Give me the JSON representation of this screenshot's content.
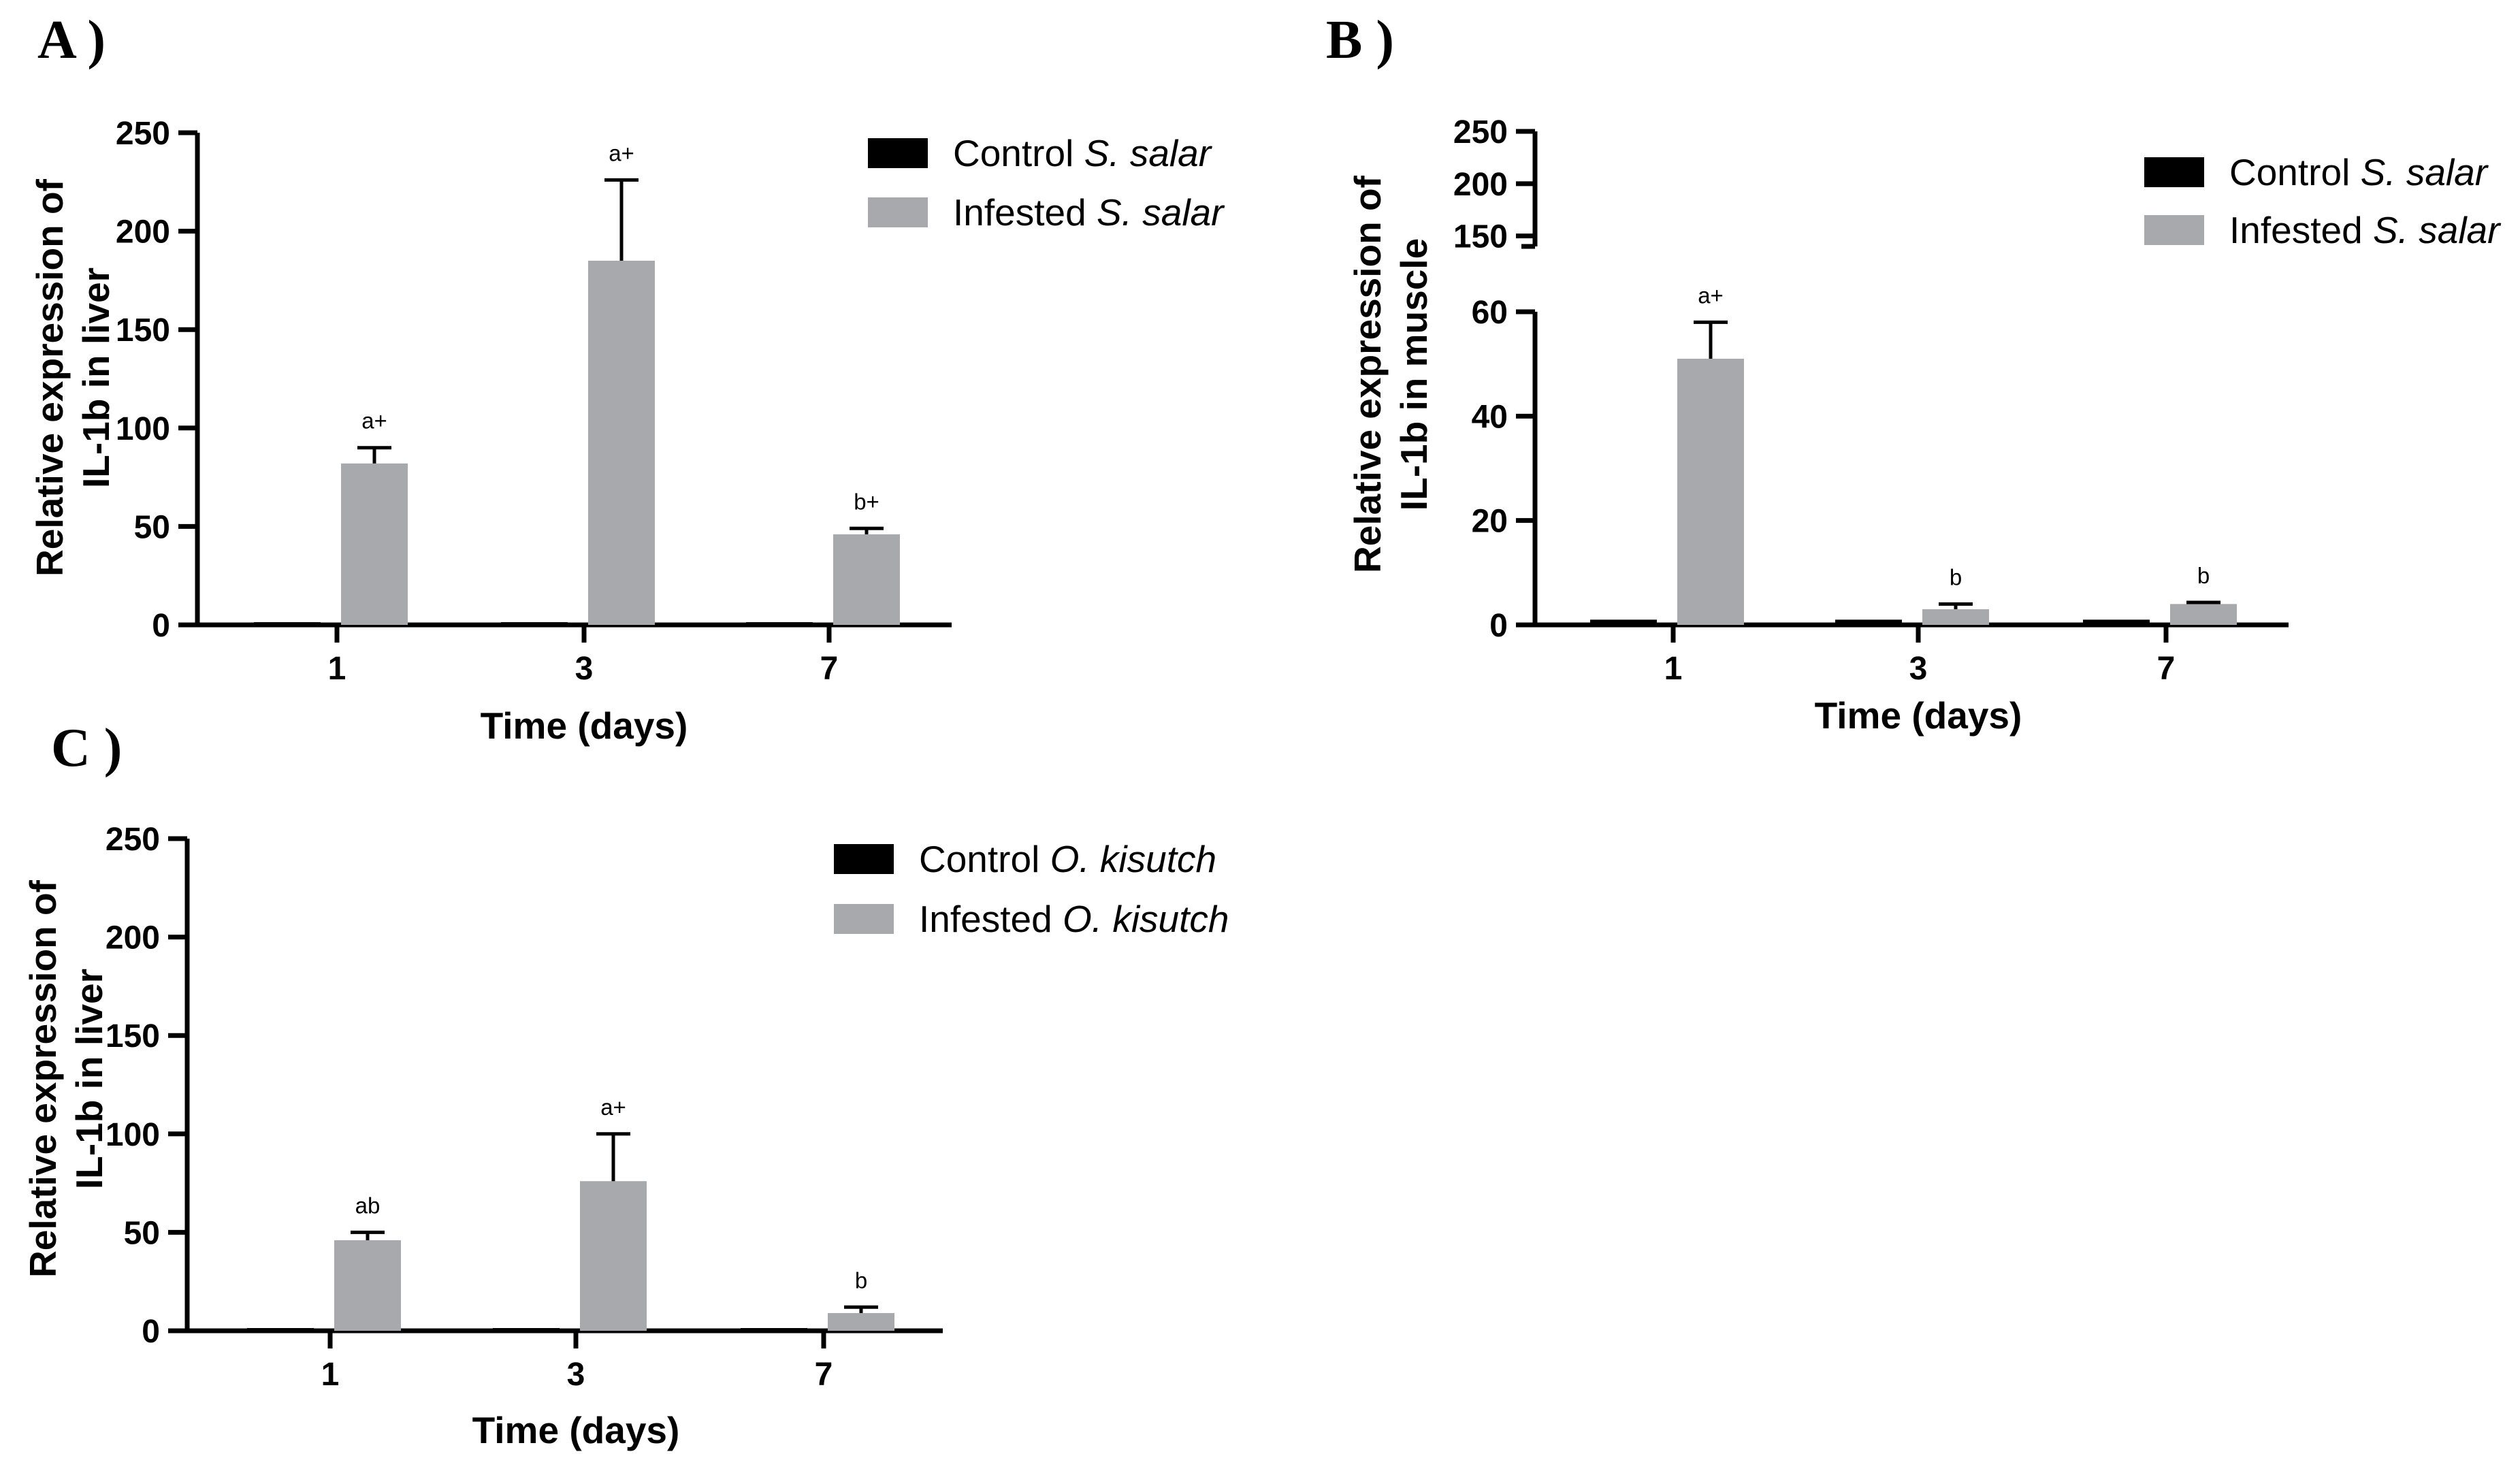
{
  "chart_data": [
    {
      "type": "bar",
      "panel_label": "A )",
      "categories": [
        "1",
        "3",
        "7"
      ],
      "xlabel": "Time (days)",
      "ylabel_lines": [
        "Relative expression of",
        "IL-1b in liver"
      ],
      "ylim": [
        0,
        250
      ],
      "yticks": [
        "0",
        "50",
        "100",
        "150",
        "200",
        "250"
      ],
      "legend_position": "top-right",
      "series": [
        {
          "name": "Control",
          "species": "S. salar",
          "color": "#000000",
          "values": [
            1,
            1,
            1
          ],
          "errors": [
            0,
            0,
            0
          ],
          "labels": [
            "",
            "",
            ""
          ]
        },
        {
          "name": "Infested",
          "species": "S. salar",
          "color": "#a7a9ac",
          "values": [
            82,
            185,
            46
          ],
          "errors": [
            8,
            41,
            3
          ],
          "labels": [
            "a+",
            "a+",
            "b+"
          ]
        }
      ]
    },
    {
      "type": "bar",
      "panel_label": "B )",
      "categories": [
        "1",
        "3",
        "7"
      ],
      "xlabel": "Time (days)",
      "ylabel_lines": [
        "Relative expression of",
        "IL-1b in muscle"
      ],
      "ylim": [
        0,
        60
      ],
      "ylim_upper": [
        140,
        250
      ],
      "yticks": [
        "0",
        "20",
        "40",
        "60"
      ],
      "yticks_upper": [
        "150",
        "200",
        "250"
      ],
      "axis_break": true,
      "legend_position": "top-right",
      "series": [
        {
          "name": "Control",
          "species": "S. salar",
          "color": "#000000",
          "values": [
            1,
            1,
            1
          ],
          "errors": [
            0,
            0,
            0
          ],
          "labels": [
            "",
            "",
            ""
          ]
        },
        {
          "name": "Infested",
          "species": "S. salar",
          "color": "#a7a9ac",
          "values": [
            51,
            3,
            4
          ],
          "errors": [
            7,
            1,
            0.3
          ],
          "labels": [
            "a+",
            "b",
            "b"
          ]
        }
      ]
    },
    {
      "type": "bar",
      "panel_label": "C )",
      "categories": [
        "1",
        "3",
        "7"
      ],
      "xlabel": "Time (days)",
      "ylabel_lines": [
        "Relative expression of",
        "IL-1b in liver"
      ],
      "ylim": [
        0,
        250
      ],
      "yticks": [
        "0",
        "50",
        "100",
        "150",
        "200",
        "250"
      ],
      "legend_position": "top-right",
      "series": [
        {
          "name": "Control",
          "species": "O. kisutch",
          "color": "#000000",
          "values": [
            1,
            1,
            1
          ],
          "errors": [
            0,
            0,
            0
          ],
          "labels": [
            "",
            "",
            ""
          ]
        },
        {
          "name": "Infested",
          "species": "O. kisutch",
          "color": "#a7a9ac",
          "values": [
            46,
            76,
            9
          ],
          "errors": [
            4,
            24,
            3
          ],
          "labels": [
            "ab",
            "a+",
            "b"
          ]
        }
      ]
    }
  ]
}
